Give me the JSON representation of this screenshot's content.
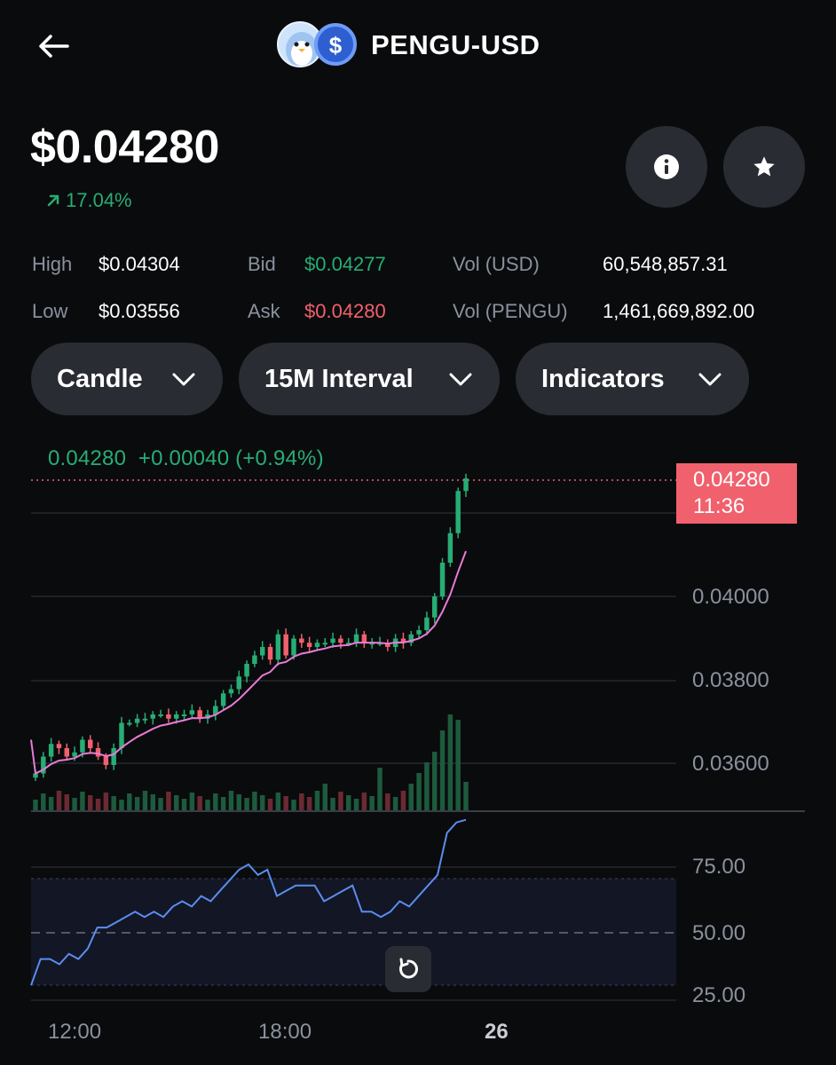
{
  "header": {
    "title": "PENGU-USD",
    "back_icon": "arrow-left-icon"
  },
  "price": {
    "value": "$0.04280",
    "change": "17.04%",
    "change_icon": "arrow-up-right-icon"
  },
  "actions": {
    "info_icon": "info-icon",
    "star_icon": "star-icon"
  },
  "stats": {
    "high_label": "High",
    "high_value": "$0.04304",
    "low_label": "Low",
    "low_value": "$0.03556",
    "bid_label": "Bid",
    "bid_value": "$0.04277",
    "ask_label": "Ask",
    "ask_value": "$0.04280",
    "vol_usd_label": "Vol (USD)",
    "vol_usd_value": "60,548,857.31",
    "vol_pengu_label": "Vol (PENGU)",
    "vol_pengu_value": "1,461,669,892.00"
  },
  "selectors": {
    "chart_type": "Candle",
    "interval": "15M Interval",
    "indicators": "Indicators"
  },
  "chart": {
    "ohlc_header": "0.04280  +0.00040 (+0.94%)",
    "last_price": "0.04280",
    "countdown": "11:36",
    "price_ticks": [
      "0.04000",
      "0.03800",
      "0.03600"
    ],
    "rsi_ticks": [
      "75.00",
      "50.00",
      "25.00"
    ],
    "time_labels": [
      "12:00",
      "18:00",
      "26"
    ]
  },
  "colors": {
    "up": "#27ad75",
    "down": "#f0616d",
    "ma": "#e97bd6",
    "rsi": "#5b8def",
    "background": "#0a0b0d",
    "pill": "#2a2c33"
  },
  "chart_data": {
    "type": "candlestick",
    "y_axis": {
      "ylim": [
        0.035,
        0.043
      ],
      "ticks": [
        0.036,
        0.038,
        0.04
      ]
    },
    "rsi_axis": {
      "ticks": [
        25,
        50,
        75
      ]
    },
    "close_series": [
      0.0358,
      0.0362,
      0.0365,
      0.0364,
      0.0362,
      0.0363,
      0.0366,
      0.0364,
      0.0362,
      0.036,
      0.0364,
      0.037,
      0.037,
      0.0371,
      0.0371,
      0.0372,
      0.0372,
      0.0371,
      0.0372,
      0.0372,
      0.0373,
      0.0371,
      0.0372,
      0.0374,
      0.0377,
      0.0378,
      0.0381,
      0.0384,
      0.0386,
      0.0388,
      0.0385,
      0.0391,
      0.0386,
      0.039,
      0.0389,
      0.0388,
      0.0389,
      0.0389,
      0.039,
      0.0389,
      0.0389,
      0.0391,
      0.0389,
      0.0389,
      0.0389,
      0.0388,
      0.039,
      0.0389,
      0.0391,
      0.0392,
      0.0395,
      0.04,
      0.0408,
      0.0415,
      0.0425,
      0.0428
    ],
    "rsi_series": [
      30,
      40,
      40,
      38,
      42,
      40,
      44,
      52,
      52,
      54,
      56,
      58,
      56,
      58,
      56,
      60,
      62,
      60,
      64,
      62,
      66,
      70,
      74,
      76,
      72,
      74,
      64,
      66,
      68,
      68,
      68,
      62,
      64,
      66,
      68,
      58,
      58,
      56,
      58,
      62,
      60,
      64,
      68,
      72,
      88,
      92,
      93
    ]
  }
}
